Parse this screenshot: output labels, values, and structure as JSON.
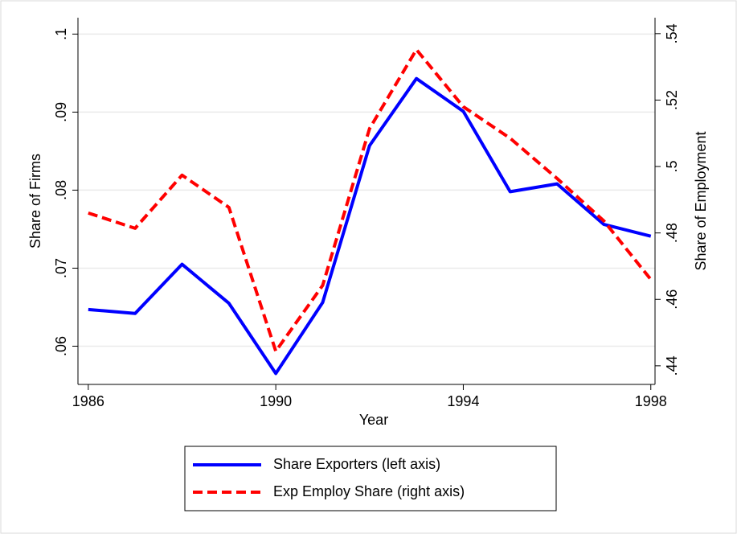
{
  "chart_data": {
    "type": "line",
    "x": [
      1986,
      1987,
      1988,
      1989,
      1990,
      1991,
      1992,
      1993,
      1994,
      1995,
      1996,
      1997,
      1998
    ],
    "series": [
      {
        "name": "Share Exporters (left axis)",
        "color": "#0000ff",
        "dash": "solid",
        "values": [
          0.0647,
          0.0642,
          0.0705,
          0.0655,
          0.0565,
          0.0656,
          0.0857,
          0.0943,
          0.0901,
          0.0798,
          0.0808,
          0.0756,
          0.0741
        ]
      },
      {
        "name": "Exp Employ Share (right axis)",
        "color": "#ff0000",
        "dash": "dashed",
        "axis": "y2",
        "values": [
          0.486,
          0.4814,
          0.4974,
          0.4877,
          0.4444,
          0.4642,
          0.5114,
          0.5352,
          0.518,
          0.5085,
          0.4964,
          0.4836,
          0.466
        ]
      }
    ],
    "xlabel": "Year",
    "ylabel": "Share of Firms",
    "y2label": "Share of Employment",
    "xlim": [
      1985.78,
      1998.09
    ],
    "xticks": [
      1986,
      1990,
      1994,
      1998
    ],
    "ylim": [
      0.0551,
      0.1021
    ],
    "yticks": [
      {
        "value": 0.06,
        "label": ".06"
      },
      {
        "value": 0.07,
        "label": ".07"
      },
      {
        "value": 0.08,
        "label": ".08"
      },
      {
        "value": 0.09,
        "label": ".09"
      },
      {
        "value": 0.1,
        "label": ".1"
      }
    ],
    "y2lim": [
      0.4344,
      0.5448
    ],
    "y2ticks": [
      {
        "value": 0.44,
        "label": ".44"
      },
      {
        "value": 0.46,
        "label": ".46"
      },
      {
        "value": 0.48,
        "label": ".48"
      },
      {
        "value": 0.5,
        "label": ".5"
      },
      {
        "value": 0.52,
        "label": ".52"
      },
      {
        "value": 0.54,
        "label": ".54"
      }
    ],
    "grid": true,
    "legend": "bottom"
  }
}
